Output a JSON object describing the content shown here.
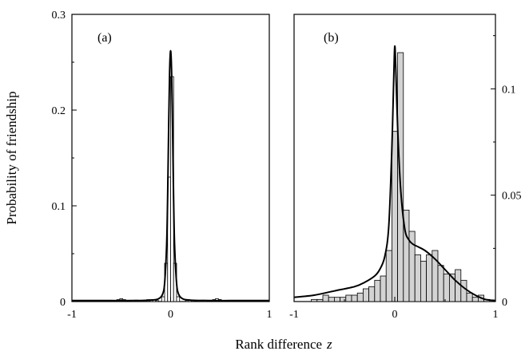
{
  "chart_data": [
    {
      "type": "bar",
      "panel_label": "(a)",
      "title": "",
      "xlabel": "Rank difference",
      "xlabel_var": "z",
      "ylabel": "Probability of friendship",
      "xlim": [
        -1,
        1
      ],
      "ylim": [
        0,
        0.3
      ],
      "xticks": [
        "-1",
        "0",
        "1"
      ],
      "yticks": [
        "0",
        "0.1",
        "0.2",
        "0.3"
      ],
      "y_axis_side": "left",
      "grid": false,
      "bar_fill": "#ffffff",
      "bar_width": 0.0303,
      "histogram": [
        {
          "x": -0.5303,
          "y": 0.002
        },
        {
          "x": -0.5,
          "y": 0.003
        },
        {
          "x": -0.4697,
          "y": 0.002
        },
        {
          "x": -0.3788,
          "y": 0.001
        },
        {
          "x": -0.3485,
          "y": 0.0015
        },
        {
          "x": -0.3182,
          "y": 0.001
        },
        {
          "x": -0.2879,
          "y": 0.001
        },
        {
          "x": -0.2576,
          "y": 0.0015
        },
        {
          "x": -0.2273,
          "y": 0.002
        },
        {
          "x": -0.197,
          "y": 0.002
        },
        {
          "x": -0.1667,
          "y": 0.002
        },
        {
          "x": -0.1364,
          "y": 0.001
        },
        {
          "x": -0.0758,
          "y": 0.005
        },
        {
          "x": -0.0455,
          "y": 0.04
        },
        {
          "x": -0.0152,
          "y": 0.13
        },
        {
          "x": 0.0152,
          "y": 0.235
        },
        {
          "x": 0.0455,
          "y": 0.04
        },
        {
          "x": 0.0758,
          "y": 0.005
        },
        {
          "x": 0.1667,
          "y": 0.001
        },
        {
          "x": 0.197,
          "y": 0.0015
        },
        {
          "x": 0.2273,
          "y": 0.001
        },
        {
          "x": 0.2879,
          "y": 0.001
        },
        {
          "x": 0.3182,
          "y": 0.0015
        },
        {
          "x": 0.3485,
          "y": 0.001
        },
        {
          "x": 0.4394,
          "y": 0.002
        },
        {
          "x": 0.4697,
          "y": 0.003
        },
        {
          "x": 0.5,
          "y": 0.002
        }
      ],
      "curve": {
        "x": [
          -1,
          -0.8,
          -0.6,
          -0.4,
          -0.2,
          -0.12,
          -0.08,
          -0.06,
          -0.04,
          -0.03,
          -0.02,
          -0.01,
          0,
          0.01,
          0.02,
          0.03,
          0.04,
          0.06,
          0.08,
          0.12,
          0.2,
          0.4,
          0.6,
          0.8,
          1
        ],
        "y": [
          0.001,
          0.001,
          0.001,
          0.001,
          0.0015,
          0.003,
          0.008,
          0.02,
          0.06,
          0.11,
          0.18,
          0.24,
          0.262,
          0.24,
          0.18,
          0.11,
          0.06,
          0.02,
          0.008,
          0.003,
          0.0015,
          0.001,
          0.001,
          0.001,
          0.001
        ]
      }
    },
    {
      "type": "bar",
      "panel_label": "(b)",
      "title": "",
      "xlabel": "Rank difference",
      "xlabel_var": "z",
      "ylabel": "",
      "xlim": [
        -1,
        1
      ],
      "ylim": [
        0,
        0.135
      ],
      "xticks": [
        "-1",
        "0",
        "1"
      ],
      "yticks": [
        "0",
        "0.05",
        "0.1"
      ],
      "y_axis_side": "right",
      "grid": false,
      "bar_fill": "#d3d3d3",
      "bar_width": 0.0571,
      "histogram": [
        {
          "x": -0.8,
          "y": 0.001
        },
        {
          "x": -0.7429,
          "y": 0.001
        },
        {
          "x": -0.6857,
          "y": 0.003
        },
        {
          "x": -0.6286,
          "y": 0.002
        },
        {
          "x": -0.5714,
          "y": 0.002
        },
        {
          "x": -0.5143,
          "y": 0.002
        },
        {
          "x": -0.4571,
          "y": 0.003
        },
        {
          "x": -0.4,
          "y": 0.003
        },
        {
          "x": -0.3429,
          "y": 0.004
        },
        {
          "x": -0.2857,
          "y": 0.006
        },
        {
          "x": -0.2286,
          "y": 0.007
        },
        {
          "x": -0.1714,
          "y": 0.01
        },
        {
          "x": -0.1143,
          "y": 0.012
        },
        {
          "x": -0.0571,
          "y": 0.024
        },
        {
          "x": 0,
          "y": 0.08
        },
        {
          "x": 0.0571,
          "y": 0.117
        },
        {
          "x": 0.1143,
          "y": 0.043
        },
        {
          "x": 0.1714,
          "y": 0.033
        },
        {
          "x": 0.2286,
          "y": 0.022
        },
        {
          "x": 0.2857,
          "y": 0.019
        },
        {
          "x": 0.3429,
          "y": 0.022
        },
        {
          "x": 0.4,
          "y": 0.024
        },
        {
          "x": 0.4571,
          "y": 0.017
        },
        {
          "x": 0.5143,
          "y": 0.013
        },
        {
          "x": 0.5714,
          "y": 0.013
        },
        {
          "x": 0.6286,
          "y": 0.015
        },
        {
          "x": 0.6857,
          "y": 0.01
        },
        {
          "x": 0.7429,
          "y": 0.004
        },
        {
          "x": 0.8,
          "y": 0.002
        },
        {
          "x": 0.8571,
          "y": 0.003
        },
        {
          "x": 0.9143,
          "y": 0.001
        }
      ],
      "curve": {
        "x": [
          -1,
          -0.8,
          -0.6,
          -0.4,
          -0.3,
          -0.2,
          -0.15,
          -0.1,
          -0.06,
          -0.03,
          -0.01,
          0,
          0.01,
          0.03,
          0.06,
          0.1,
          0.14,
          0.18,
          0.22,
          0.3,
          0.4,
          0.5,
          0.6,
          0.7,
          0.8,
          0.9,
          1
        ],
        "y": [
          0.002,
          0.003,
          0.005,
          0.007,
          0.009,
          0.012,
          0.015,
          0.021,
          0.035,
          0.07,
          0.105,
          0.12,
          0.11,
          0.08,
          0.052,
          0.034,
          0.029,
          0.027,
          0.026,
          0.024,
          0.02,
          0.015,
          0.01,
          0.006,
          0.003,
          0.001,
          0.0005
        ]
      }
    }
  ]
}
